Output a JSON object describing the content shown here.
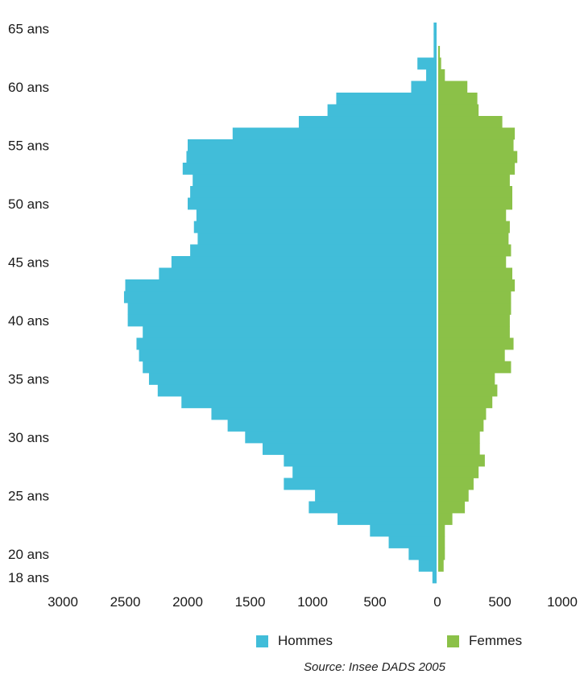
{
  "chart_data": {
    "type": "bar",
    "orientation": "horizontal-pyramid",
    "age_labels": [
      "65 ans",
      "60 ans",
      "55 ans",
      "50 ans",
      "45 ans",
      "40 ans",
      "35 ans",
      "30 ans",
      "25 ans",
      "20 ans",
      "18 ans"
    ],
    "age_label_values": [
      65,
      60,
      55,
      50,
      45,
      40,
      35,
      30,
      25,
      20,
      18
    ],
    "ages": [
      18,
      19,
      20,
      21,
      22,
      23,
      24,
      25,
      26,
      27,
      28,
      29,
      30,
      31,
      32,
      33,
      34,
      35,
      36,
      37,
      38,
      39,
      40,
      41,
      42,
      43,
      44,
      45,
      46,
      47,
      48,
      49,
      50,
      51,
      52,
      53,
      54,
      55,
      56,
      57,
      58,
      59,
      60,
      61,
      62,
      63,
      64,
      65
    ],
    "series": [
      {
        "name": "Hommes",
        "side": "left",
        "values": [
          40,
          150,
          230,
          390,
          540,
          800,
          1030,
          980,
          1230,
          1160,
          1230,
          1400,
          1540,
          1680,
          1810,
          2050,
          2240,
          2310,
          2360,
          2390,
          2410,
          2360,
          2480,
          2480,
          2510,
          2500,
          2230,
          2130,
          1980,
          1920,
          1950,
          1930,
          2000,
          1980,
          1960,
          2040,
          2010,
          2000,
          1640,
          1110,
          880,
          810,
          210,
          90,
          160,
          30,
          30,
          30
        ]
      },
      {
        "name": "Femmes",
        "side": "right",
        "values": [
          0,
          50,
          60,
          60,
          60,
          120,
          220,
          250,
          290,
          330,
          380,
          340,
          340,
          370,
          390,
          440,
          480,
          460,
          590,
          540,
          610,
          580,
          580,
          590,
          590,
          620,
          600,
          550,
          590,
          570,
          580,
          550,
          600,
          600,
          580,
          620,
          640,
          610,
          620,
          520,
          330,
          320,
          240,
          60,
          30,
          20,
          0,
          0
        ]
      }
    ],
    "x_ticks": [
      "3000",
      "2500",
      "2000",
      "1500",
      "1000",
      "500",
      "0",
      "500",
      "1000"
    ],
    "x_tick_values": [
      -3000,
      -2500,
      -2000,
      -1500,
      -1000,
      -500,
      0,
      500,
      1000
    ],
    "xlim": [
      -3000,
      1000
    ],
    "ylim": [
      17.5,
      65.5
    ],
    "grid": false,
    "legend_position": "bottom",
    "colors": {
      "Hommes": "#41BDD9",
      "Femmes": "#8BC148"
    }
  },
  "legend": {
    "hommes": "Hommes",
    "femmes": "Femmes"
  },
  "source": "Source: Insee DADS 2005"
}
